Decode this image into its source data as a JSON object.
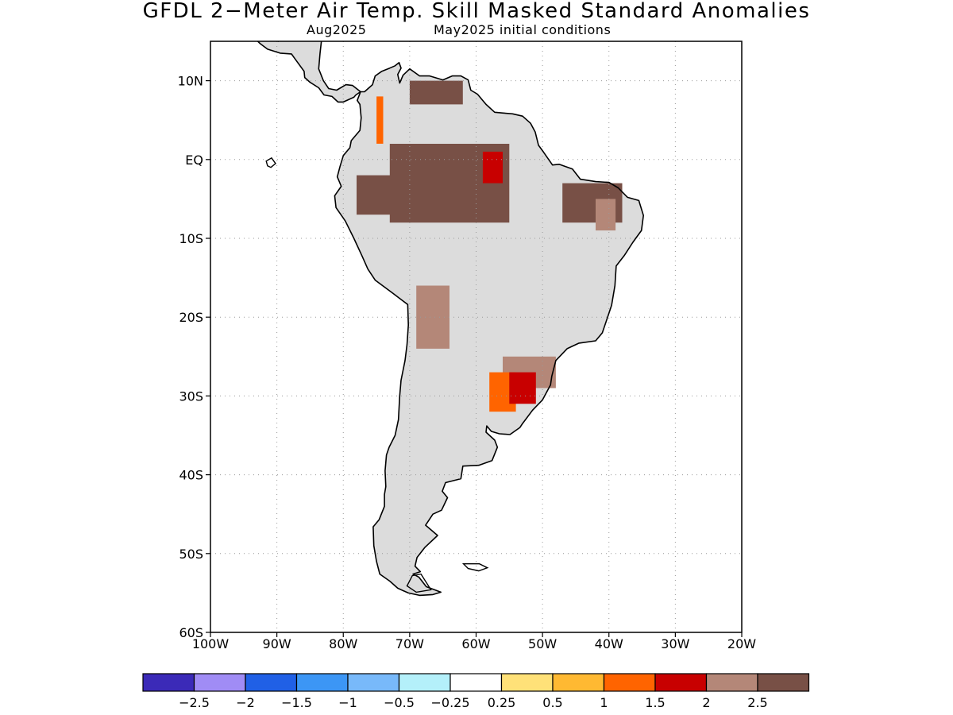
{
  "title": "GFDL 2−Meter Air Temp. Skill Masked Standard Anomalies",
  "subtitle_left": "Aug2025",
  "subtitle_right": "May2025 initial conditions",
  "lat_ticks": [
    "10N",
    "EQ",
    "10S",
    "20S",
    "30S",
    "40S",
    "50S",
    "60S"
  ],
  "lon_ticks": [
    "100W",
    "90W",
    "80W",
    "70W",
    "60W",
    "50W",
    "40W",
    "30W",
    "20W"
  ],
  "map_extent": {
    "lon": [
      -100,
      -20
    ],
    "lat": [
      -60,
      15
    ]
  },
  "grid": "dotted",
  "colorbar": {
    "colors": [
      "#3b2ab8",
      "#a08cf5",
      "#2060e6",
      "#3c96f5",
      "#78b9fa",
      "#b4f0fa",
      "#ffffff",
      "#ffe178",
      "#ffb932",
      "#ff6400",
      "#c80000",
      "#b48778",
      "#785046"
    ],
    "labels": [
      "−2.5",
      "−2",
      "−1.5",
      "−1",
      "−0.5",
      "−0.25",
      "0.25",
      "0.5",
      "1",
      "1.5",
      "2",
      "2.5"
    ]
  },
  "masked_color": "#dcdcdc",
  "anomaly_regions": [
    {
      "name": "northern-amazon",
      "level": 2.5,
      "lon": [
        -73,
        -55
      ],
      "lat": [
        -8,
        2
      ]
    },
    {
      "name": "western-amazon",
      "level": 2.5,
      "lon": [
        -78,
        -70
      ],
      "lat": [
        -7,
        -2
      ]
    },
    {
      "name": "central-amazon-core",
      "level": 2.5,
      "lon": [
        -66,
        -60
      ],
      "lat": [
        -7,
        -3
      ]
    },
    {
      "name": "amazon-hotspot",
      "level": 1.5,
      "lon": [
        -59,
        -56
      ],
      "lat": [
        -3,
        1
      ]
    },
    {
      "name": "northeast-brazil",
      "level": 2.5,
      "lon": [
        -47,
        -38
      ],
      "lat": [
        -8,
        -3
      ]
    },
    {
      "name": "northeast-brazil-edge",
      "level": 2,
      "lon": [
        -42,
        -39
      ],
      "lat": [
        -9,
        -5
      ]
    },
    {
      "name": "venezuela",
      "level": 2.5,
      "lon": [
        -70,
        -62
      ],
      "lat": [
        7,
        10
      ]
    },
    {
      "name": "colombia-strip",
      "level": 1,
      "lon": [
        -75,
        -74
      ],
      "lat": [
        2,
        8
      ]
    },
    {
      "name": "bolivian-altiplano",
      "level": 2,
      "lon": [
        -69,
        -64
      ],
      "lat": [
        -24,
        -16
      ]
    },
    {
      "name": "southern-brazil",
      "level": 2,
      "lon": [
        -56,
        -48
      ],
      "lat": [
        -29,
        -25
      ]
    },
    {
      "name": "uruguay-north",
      "level": 1,
      "lon": [
        -58,
        -54
      ],
      "lat": [
        -32,
        -27
      ]
    },
    {
      "name": "parana-core",
      "level": 1.5,
      "lon": [
        -55,
        -51
      ],
      "lat": [
        -31,
        -27
      ]
    }
  ]
}
